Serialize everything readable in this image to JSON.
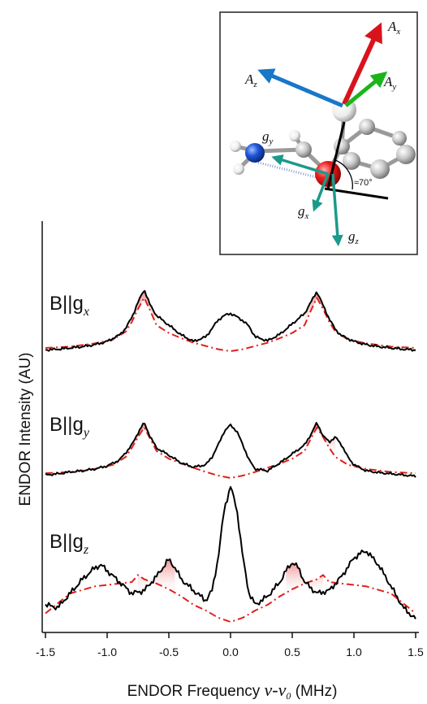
{
  "chart_data": {
    "type": "line",
    "xlabel": "ENDOR Frequency",
    "xlabel_symbol": "ν-ν",
    "xlabel_symbol_sub": "0",
    "xlabel_unit": "(MHz)",
    "ylabel": "ENDOR Intensity (AU)",
    "xlim": [
      -1.5,
      1.5
    ],
    "x_ticks": [
      "-1.5",
      "-1.0",
      "-0.5",
      "0.0",
      "0.5",
      "1.0",
      "1.5"
    ],
    "x_tick_values": [
      -1.5,
      -1.0,
      -0.5,
      0.0,
      0.5,
      1.0,
      1.5
    ],
    "colors": {
      "experiment": "#000000",
      "simulation": "#e0201c",
      "fill": "#f5a0a0"
    },
    "panels": [
      {
        "label_prefix": "B||g",
        "label_sub": "x",
        "experiment": {
          "x": [
            -1.5,
            -1.4,
            -1.3,
            -1.2,
            -1.1,
            -1.0,
            -0.9,
            -0.85,
            -0.8,
            -0.75,
            -0.7,
            -0.65,
            -0.6,
            -0.5,
            -0.4,
            -0.3,
            -0.2,
            -0.15,
            -0.1,
            -0.05,
            0.0,
            0.05,
            0.1,
            0.15,
            0.2,
            0.3,
            0.4,
            0.5,
            0.6,
            0.65,
            0.7,
            0.75,
            0.8,
            0.85,
            0.9,
            1.0,
            1.1,
            1.2,
            1.3,
            1.4,
            1.5
          ],
          "y": [
            0.02,
            0.03,
            0.05,
            0.07,
            0.1,
            0.15,
            0.25,
            0.35,
            0.52,
            0.75,
            0.95,
            0.7,
            0.55,
            0.4,
            0.25,
            0.15,
            0.22,
            0.35,
            0.48,
            0.55,
            0.58,
            0.53,
            0.47,
            0.38,
            0.22,
            0.16,
            0.26,
            0.42,
            0.58,
            0.75,
            0.92,
            0.7,
            0.5,
            0.33,
            0.24,
            0.15,
            0.1,
            0.07,
            0.05,
            0.03,
            0.02
          ]
        },
        "simulation": {
          "x": [
            -1.5,
            -1.3,
            -1.1,
            -0.95,
            -0.85,
            -0.8,
            -0.75,
            -0.7,
            -0.65,
            -0.6,
            -0.5,
            -0.4,
            -0.3,
            -0.2,
            -0.1,
            0.0,
            0.1,
            0.2,
            0.3,
            0.4,
            0.5,
            0.6,
            0.65,
            0.7,
            0.75,
            0.8,
            0.85,
            0.95,
            1.1,
            1.3,
            1.5
          ],
          "y": [
            0.05,
            0.07,
            0.12,
            0.18,
            0.3,
            0.45,
            0.65,
            0.82,
            0.62,
            0.4,
            0.28,
            0.2,
            0.13,
            0.08,
            0.03,
            0.0,
            0.03,
            0.08,
            0.13,
            0.2,
            0.28,
            0.4,
            0.62,
            0.82,
            0.65,
            0.45,
            0.3,
            0.18,
            0.12,
            0.07,
            0.05
          ]
        },
        "fills": [
          [
            -0.85,
            -0.6
          ],
          [
            0.6,
            0.85
          ]
        ]
      },
      {
        "label_prefix": "B||g",
        "label_sub": "y",
        "experiment": {
          "x": [
            -1.5,
            -1.4,
            -1.3,
            -1.2,
            -1.1,
            -1.0,
            -0.9,
            -0.85,
            -0.8,
            -0.75,
            -0.7,
            -0.65,
            -0.6,
            -0.5,
            -0.4,
            -0.3,
            -0.2,
            -0.15,
            -0.1,
            -0.05,
            0.0,
            0.05,
            0.1,
            0.15,
            0.2,
            0.3,
            0.4,
            0.5,
            0.6,
            0.65,
            0.7,
            0.75,
            0.8,
            0.85,
            0.9,
            0.95,
            1.0,
            1.1,
            1.2,
            1.3,
            1.4,
            1.5
          ],
          "y": [
            0.05,
            0.07,
            0.1,
            0.12,
            0.15,
            0.2,
            0.3,
            0.42,
            0.55,
            0.75,
            0.92,
            0.68,
            0.5,
            0.38,
            0.25,
            0.18,
            0.22,
            0.35,
            0.55,
            0.78,
            0.88,
            0.78,
            0.55,
            0.3,
            0.15,
            0.12,
            0.25,
            0.4,
            0.55,
            0.72,
            0.92,
            0.7,
            0.6,
            0.68,
            0.55,
            0.35,
            0.22,
            0.12,
            0.09,
            0.07,
            0.05,
            0.03
          ]
        },
        "simulation": {
          "x": [
            -1.5,
            -1.3,
            -1.1,
            -0.95,
            -0.85,
            -0.8,
            -0.75,
            -0.7,
            -0.65,
            -0.6,
            -0.5,
            -0.4,
            -0.3,
            -0.2,
            -0.1,
            0.0,
            0.1,
            0.2,
            0.3,
            0.4,
            0.5,
            0.6,
            0.65,
            0.7,
            0.75,
            0.8,
            0.85,
            0.95,
            1.1,
            1.3,
            1.5
          ],
          "y": [
            0.08,
            0.1,
            0.15,
            0.22,
            0.35,
            0.5,
            0.68,
            0.84,
            0.65,
            0.45,
            0.32,
            0.24,
            0.17,
            0.1,
            0.04,
            0.0,
            0.04,
            0.1,
            0.17,
            0.24,
            0.32,
            0.45,
            0.65,
            0.84,
            0.68,
            0.5,
            0.35,
            0.22,
            0.15,
            0.1,
            0.08
          ]
        },
        "fills": [
          [
            -0.85,
            -0.6
          ],
          [
            0.6,
            0.85
          ]
        ]
      },
      {
        "label_prefix": "B||g",
        "label_sub": "z",
        "experiment": {
          "x": [
            -1.5,
            -1.4,
            -1.3,
            -1.2,
            -1.1,
            -1.05,
            -1.0,
            -0.9,
            -0.8,
            -0.7,
            -0.6,
            -0.55,
            -0.5,
            -0.45,
            -0.4,
            -0.3,
            -0.2,
            -0.15,
            -0.1,
            -0.05,
            0.0,
            0.05,
            0.1,
            0.15,
            0.2,
            0.3,
            0.4,
            0.45,
            0.5,
            0.55,
            0.6,
            0.7,
            0.8,
            0.9,
            1.0,
            1.05,
            1.1,
            1.2,
            1.3,
            1.4,
            1.5
          ],
          "y": [
            0.12,
            0.1,
            0.2,
            0.3,
            0.38,
            0.4,
            0.36,
            0.28,
            0.2,
            0.22,
            0.32,
            0.38,
            0.44,
            0.38,
            0.3,
            0.22,
            0.15,
            0.22,
            0.45,
            0.8,
            0.95,
            0.8,
            0.45,
            0.2,
            0.12,
            0.18,
            0.28,
            0.36,
            0.42,
            0.38,
            0.28,
            0.2,
            0.22,
            0.32,
            0.45,
            0.48,
            0.5,
            0.4,
            0.25,
            0.1,
            0.02
          ]
        },
        "simulation": {
          "x": [
            -1.5,
            -1.3,
            -1.1,
            -0.9,
            -0.8,
            -0.75,
            -0.7,
            -0.6,
            -0.5,
            -0.4,
            -0.3,
            -0.2,
            -0.1,
            0.0,
            0.1,
            0.2,
            0.3,
            0.4,
            0.5,
            0.6,
            0.7,
            0.75,
            0.8,
            0.9,
            1.1,
            1.3,
            1.5
          ],
          "y": [
            0.06,
            0.2,
            0.25,
            0.27,
            0.28,
            0.33,
            0.3,
            0.27,
            0.23,
            0.18,
            0.12,
            0.08,
            0.03,
            0.0,
            0.03,
            0.08,
            0.12,
            0.18,
            0.23,
            0.27,
            0.3,
            0.33,
            0.28,
            0.27,
            0.25,
            0.2,
            0.06
          ]
        },
        "fills": [
          [
            -0.75,
            -0.45
          ],
          [
            0.45,
            0.75
          ]
        ]
      }
    ]
  },
  "inset": {
    "labels": {
      "Ax": {
        "main": "A",
        "sub": "x"
      },
      "Ay": {
        "main": "A",
        "sub": "y"
      },
      "Az": {
        "main": "A",
        "sub": "z"
      },
      "gx": {
        "main": "g",
        "sub": "x"
      },
      "gy": {
        "main": "g",
        "sub": "y"
      },
      "gz": {
        "main": "g",
        "sub": "z"
      }
    },
    "angle_label": "≈70°",
    "colors": {
      "Ax": "#d8131c",
      "Ay": "#1cb41c",
      "Az": "#1877c8",
      "g": "#1a9a8a",
      "oxygen": "#e8161b",
      "nitrogen": "#1f55d8",
      "carbon": "#c7c7c7",
      "hydrogen": "#f2f2f2"
    }
  }
}
